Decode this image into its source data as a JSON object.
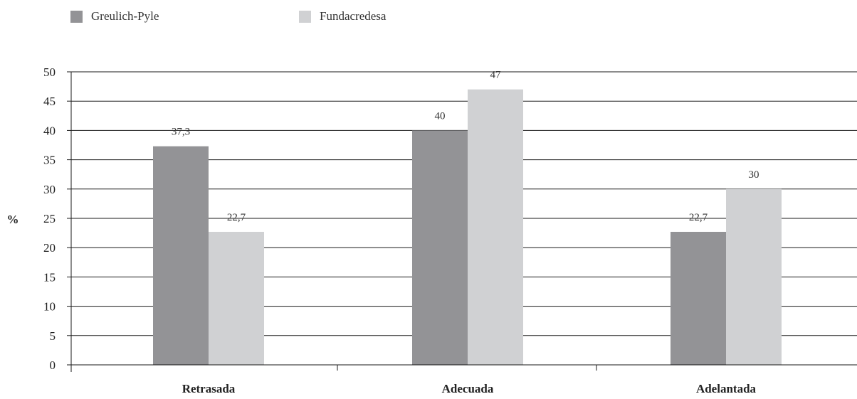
{
  "chart_data": {
    "type": "bar",
    "categories": [
      "Retrasada",
      "Adecuada",
      "Adelantada"
    ],
    "series": [
      {
        "name": "Greulich-Pyle",
        "values": [
          37.3,
          40,
          22.7
        ],
        "labels": [
          "37,3",
          "40",
          "22,7"
        ],
        "color": "#939396"
      },
      {
        "name": "Fundacredesa",
        "values": [
          22.7,
          47,
          30
        ],
        "labels": [
          "22,7",
          "47",
          "30"
        ],
        "color": "#d0d1d3"
      }
    ],
    "title": "",
    "xlabel": "",
    "ylabel": "%",
    "ylim": [
      0,
      50
    ],
    "yticks": [
      0,
      5,
      10,
      15,
      20,
      25,
      30,
      35,
      40,
      45,
      50
    ],
    "grid": true,
    "legend_position": "top-left"
  }
}
